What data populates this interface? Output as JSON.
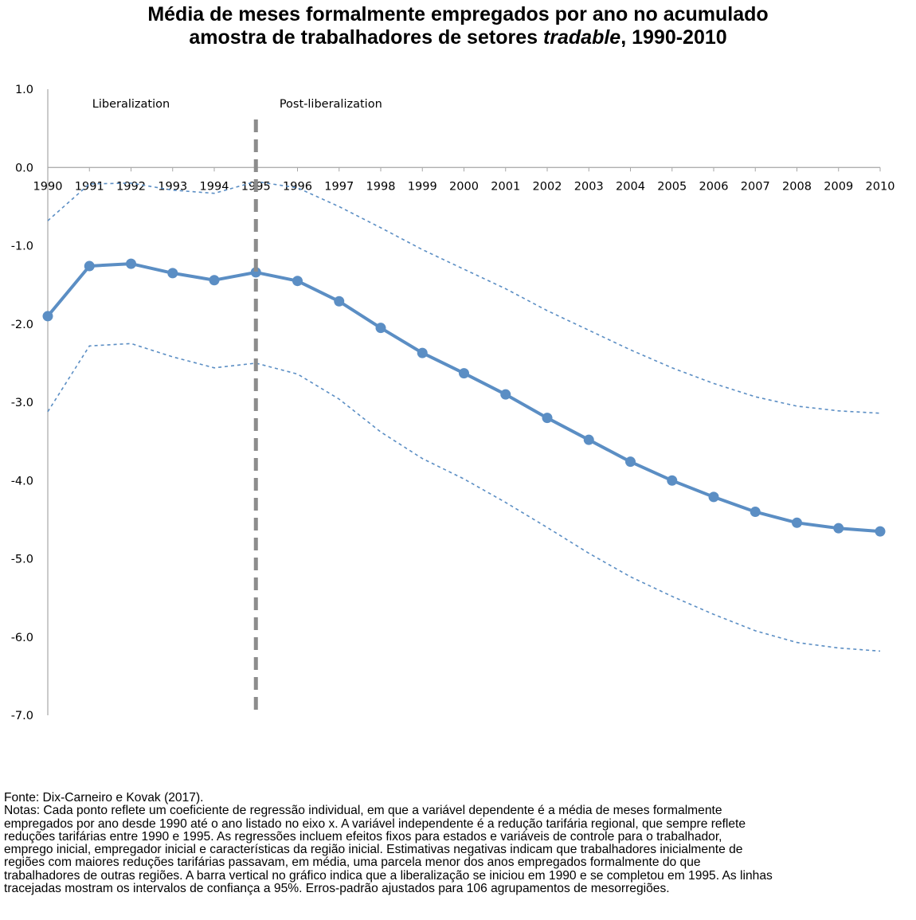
{
  "title": {
    "line1": "Média de meses formalmente empregados por ano no acumulado",
    "line2_prefix": "amostra de trabalhadores de setores ",
    "line2_italic": "tradable",
    "line2_suffix": ", 1990-2010"
  },
  "chart_data": {
    "type": "line",
    "title": "Média de meses formalmente empregados por ano no acumulado amostra de trabalhadores de setores tradable, 1990-2010",
    "xlabel": "",
    "ylabel": "",
    "x": [
      "1990",
      "1991",
      "1992",
      "1993",
      "1994",
      "1995",
      "1996",
      "1997",
      "1998",
      "1999",
      "2000",
      "2001",
      "2002",
      "2003",
      "2004",
      "2005",
      "2006",
      "2007",
      "2008",
      "2009",
      "2010"
    ],
    "ylim": [
      -7.0,
      1.0
    ],
    "yticks": [
      "1.0",
      "0.0",
      "-1.0",
      "-2.0",
      "-3.0",
      "-4.0",
      "-5.0",
      "-6.0",
      "-7.0"
    ],
    "series": [
      {
        "name": "",
        "style": "solid-markers",
        "color": "#5b8ec4",
        "values": [
          -1.9,
          -1.26,
          -1.23,
          -1.35,
          -1.44,
          -1.34,
          -1.45,
          -1.71,
          -2.05,
          -2.37,
          -2.63,
          -2.9,
          -3.2,
          -3.48,
          -3.76,
          -4.0,
          -4.21,
          -4.4,
          -4.54,
          -4.61,
          -4.65
        ]
      },
      {
        "name": "",
        "style": "dashed-upper",
        "color": "#5b8ec4",
        "values": [
          -0.68,
          -0.21,
          -0.2,
          -0.29,
          -0.33,
          -0.18,
          -0.26,
          -0.5,
          -0.77,
          -1.05,
          -1.3,
          -1.55,
          -1.83,
          -2.08,
          -2.33,
          -2.56,
          -2.76,
          -2.93,
          -3.05,
          -3.11,
          -3.14
        ]
      },
      {
        "name": "",
        "style": "dashed-lower",
        "color": "#5b8ec4",
        "values": [
          -3.12,
          -2.28,
          -2.25,
          -2.42,
          -2.56,
          -2.5,
          -2.64,
          -2.96,
          -3.38,
          -3.72,
          -3.98,
          -4.28,
          -4.6,
          -4.93,
          -5.23,
          -5.48,
          -5.71,
          -5.92,
          -6.07,
          -6.14,
          -6.18
        ]
      }
    ],
    "annotations": [
      {
        "text": "Liberalization",
        "x": "1992.0"
      },
      {
        "text": "Post-liberalization",
        "x": "1996.8"
      }
    ],
    "vline": {
      "x": "1995",
      "style": "dashed",
      "color": "#8c8c8c"
    },
    "grid": false
  },
  "footer": {
    "source": "Fonte: Dix-Carneiro e Kovak (2017).",
    "notes": [
      "Notas: Cada ponto reflete um coeficiente de regressão individual, em que a variável dependente é a média de meses formalmente",
      "empregados por ano desde 1990 até o ano listado no eixo x. A variável independente é a redução tarifária regional, que sempre reflete",
      "reduções tarifárias entre 1990 e 1995. As regressões incluem efeitos fixos para estados e variáveis de controle para o trabalhador,",
      "emprego inicial, empregador inicial e características da região inicial. Estimativas negativas indicam que trabalhadores inicialmente de",
      "regiões com maiores reduções tarifárias passavam, em média, uma parcela menor dos anos empregados formalmente do que",
      "trabalhadores de outras regiões. A barra vertical no gráfico indica que a liberalização se iniciou em 1990 e se completou em 1995. As linhas",
      "tracejadas mostram os intervalos de confiança a 95%. Erros-padrão ajustados para 106 agrupamentos de mesorregiões."
    ]
  }
}
